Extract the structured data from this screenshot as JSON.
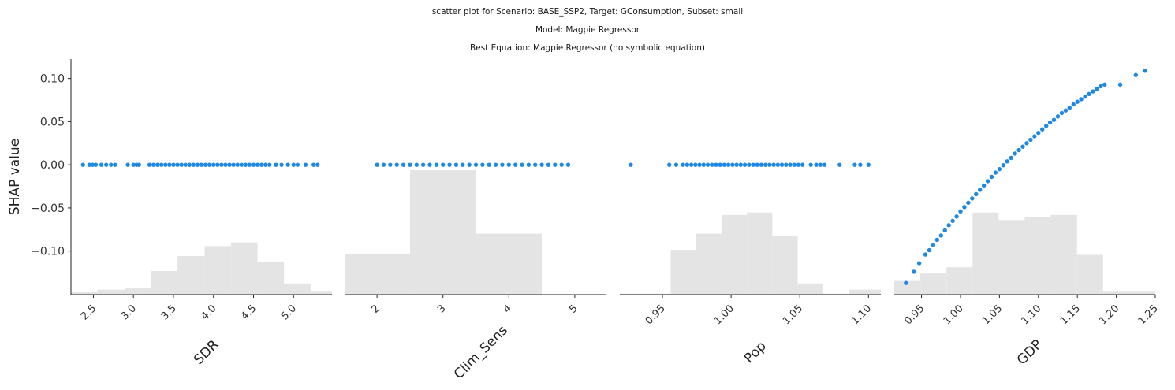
{
  "figure": {
    "title_lines": [
      "scatter plot for Scenario: BASE_SSP2, Target: GConsumption, Subset: small",
      "Model: Magpie Regressor",
      "Best Equation: Magpie Regressor (no symbolic equation)"
    ],
    "ylabel": "SHAP value",
    "point_color": "#1e88e5",
    "hist_color": "#e4e4e4"
  },
  "chart_data": [
    {
      "type": "scatter",
      "xlabel": "SDR",
      "ylabel": "SHAP value",
      "xlim": [
        2.22,
        5.48
      ],
      "ylim": [
        -0.1505,
        0.1225
      ],
      "xticks": [
        "2.5",
        "3.0",
        "3.5",
        "4.0",
        "4.5",
        "5.0"
      ],
      "yticks": [
        "0.10",
        "0.05",
        "0.00",
        "−0.05",
        "−0.10"
      ],
      "grid": false,
      "points": {
        "x": [
          2.37,
          2.45,
          2.49,
          2.53,
          2.6,
          2.66,
          2.72,
          2.77,
          2.93,
          3.0,
          3.04,
          3.07,
          3.2,
          3.25,
          3.3,
          3.35,
          3.4,
          3.45,
          3.5,
          3.55,
          3.6,
          3.65,
          3.7,
          3.75,
          3.8,
          3.85,
          3.9,
          3.95,
          4.0,
          4.05,
          4.1,
          4.15,
          4.2,
          4.25,
          4.3,
          4.35,
          4.4,
          4.45,
          4.5,
          4.55,
          4.6,
          4.65,
          4.7,
          4.78,
          4.85,
          4.93,
          5.0,
          5.05,
          5.15,
          5.25,
          5.3
        ],
        "y": [
          0,
          0,
          0,
          0,
          0,
          0,
          0,
          0,
          0,
          0,
          0,
          0,
          0,
          0,
          0,
          0,
          0,
          0,
          0,
          0,
          0,
          0,
          0,
          0,
          0,
          0,
          0,
          0,
          0,
          0,
          0,
          0,
          0,
          0,
          0,
          0,
          0,
          0,
          0,
          0,
          0,
          0,
          0,
          0,
          0,
          0,
          0,
          0,
          0,
          0,
          0
        ]
      },
      "histogram": {
        "edges": [
          2.22,
          2.55,
          2.89,
          3.22,
          3.55,
          3.89,
          4.22,
          4.55,
          4.88,
          5.22,
          5.48
        ],
        "heights": [
          0.025,
          0.04,
          0.05,
          0.19,
          0.31,
          0.39,
          0.42,
          0.26,
          0.09,
          0.03
        ]
      }
    },
    {
      "type": "scatter",
      "xlabel": "Clim_Sens",
      "ylabel": "",
      "xlim": [
        1.52,
        5.48
      ],
      "ylim": [
        -0.1505,
        0.1225
      ],
      "xticks": [
        "2",
        "3",
        "4",
        "5"
      ],
      "yticks": [],
      "grid": false,
      "points": {
        "x": [
          2.0,
          2.1,
          2.2,
          2.3,
          2.4,
          2.5,
          2.6,
          2.7,
          2.8,
          2.9,
          3.0,
          3.1,
          3.2,
          3.3,
          3.4,
          3.5,
          3.6,
          3.7,
          3.8,
          3.9,
          4.0,
          4.1,
          4.2,
          4.3,
          4.4,
          4.5,
          4.6,
          4.7,
          4.8,
          4.9
        ],
        "y": [
          0,
          0,
          0,
          0,
          0,
          0,
          0,
          0,
          0,
          0,
          0,
          0,
          0,
          0,
          0,
          0,
          0,
          0,
          0,
          0,
          0,
          0,
          0,
          0,
          0,
          0,
          0,
          0,
          0,
          0
        ]
      },
      "histogram": {
        "edges": [
          1.52,
          2.5,
          3.5,
          4.5,
          5.48
        ],
        "heights": [
          0.33,
          1.0,
          0.49,
          0.0
        ]
      }
    },
    {
      "type": "scatter",
      "xlabel": "Pop",
      "ylabel": "",
      "xlim": [
        0.919,
        1.109
      ],
      "ylim": [
        -0.1505,
        0.1225
      ],
      "xticks": [
        "0.95",
        "1.00",
        "1.05",
        "1.10"
      ],
      "yticks": [],
      "grid": false,
      "points": {
        "x": [
          0.927,
          0.955,
          0.96,
          0.965,
          0.968,
          0.971,
          0.974,
          0.977,
          0.98,
          0.983,
          0.986,
          0.989,
          0.992,
          0.995,
          0.998,
          1.001,
          1.004,
          1.007,
          1.01,
          1.013,
          1.016,
          1.019,
          1.022,
          1.025,
          1.028,
          1.031,
          1.034,
          1.037,
          1.04,
          1.043,
          1.046,
          1.049,
          1.052,
          1.058,
          1.062,
          1.065,
          1.068,
          1.079,
          1.09,
          1.094,
          1.1
        ],
        "y": [
          0,
          0,
          0,
          0,
          0,
          0,
          0,
          0,
          0,
          0,
          0,
          0,
          0,
          0,
          0,
          0,
          0,
          0,
          0,
          0,
          0,
          0,
          0,
          0,
          0,
          0,
          0,
          0,
          0,
          0,
          0,
          0,
          0,
          0,
          0,
          0,
          0,
          0,
          0,
          0,
          0
        ]
      },
      "histogram": {
        "edges": [
          0.919,
          0.9375,
          0.956,
          0.9745,
          0.993,
          1.0115,
          1.03,
          1.0485,
          1.067,
          1.0855,
          1.109
        ],
        "heights": [
          0.008,
          0.008,
          0.36,
          0.49,
          0.64,
          0.66,
          0.47,
          0.09,
          0.008,
          0.04
        ]
      }
    },
    {
      "type": "scatter",
      "xlabel": "GDP",
      "ylabel": "",
      "xlim": [
        0.915,
        1.25
      ],
      "ylim": [
        -0.1505,
        0.1225
      ],
      "xticks": [
        "0.95",
        "1.00",
        "1.05",
        "1.10",
        "1.15",
        "1.20",
        "1.25"
      ],
      "yticks": [],
      "grid": false,
      "points": {
        "x": [
          0.93,
          0.94,
          0.947,
          0.955,
          0.96,
          0.965,
          0.97,
          0.975,
          0.98,
          0.985,
          0.99,
          0.995,
          1.0,
          1.005,
          1.01,
          1.015,
          1.02,
          1.025,
          1.03,
          1.035,
          1.04,
          1.045,
          1.05,
          1.055,
          1.06,
          1.065,
          1.07,
          1.075,
          1.08,
          1.085,
          1.09,
          1.095,
          1.1,
          1.105,
          1.11,
          1.115,
          1.12,
          1.125,
          1.13,
          1.135,
          1.14,
          1.145,
          1.15,
          1.155,
          1.16,
          1.165,
          1.17,
          1.175,
          1.18,
          1.185,
          1.205,
          1.225,
          1.237
        ],
        "y": [
          -0.137,
          -0.124,
          -0.114,
          -0.104,
          -0.099,
          -0.093,
          -0.087,
          -0.082,
          -0.076,
          -0.07,
          -0.065,
          -0.06,
          -0.054,
          -0.049,
          -0.044,
          -0.039,
          -0.034,
          -0.029,
          -0.024,
          -0.019,
          -0.014,
          -0.009,
          -0.005,
          -0.0005,
          0.004,
          0.008,
          0.013,
          0.017,
          0.021,
          0.025,
          0.029,
          0.033,
          0.037,
          0.041,
          0.045,
          0.049,
          0.052,
          0.056,
          0.06,
          0.063,
          0.066,
          0.07,
          0.073,
          0.076,
          0.079,
          0.082,
          0.085,
          0.088,
          0.091,
          0.093,
          0.093,
          0.104,
          0.109
        ]
      },
      "histogram": {
        "edges": [
          0.915,
          0.9485,
          0.982,
          1.0155,
          1.049,
          1.0825,
          1.116,
          1.1495,
          1.183,
          1.2165,
          1.25
        ],
        "heights": [
          0.11,
          0.17,
          0.22,
          0.66,
          0.6,
          0.62,
          0.64,
          0.32,
          0.03,
          0.03
        ]
      }
    }
  ]
}
